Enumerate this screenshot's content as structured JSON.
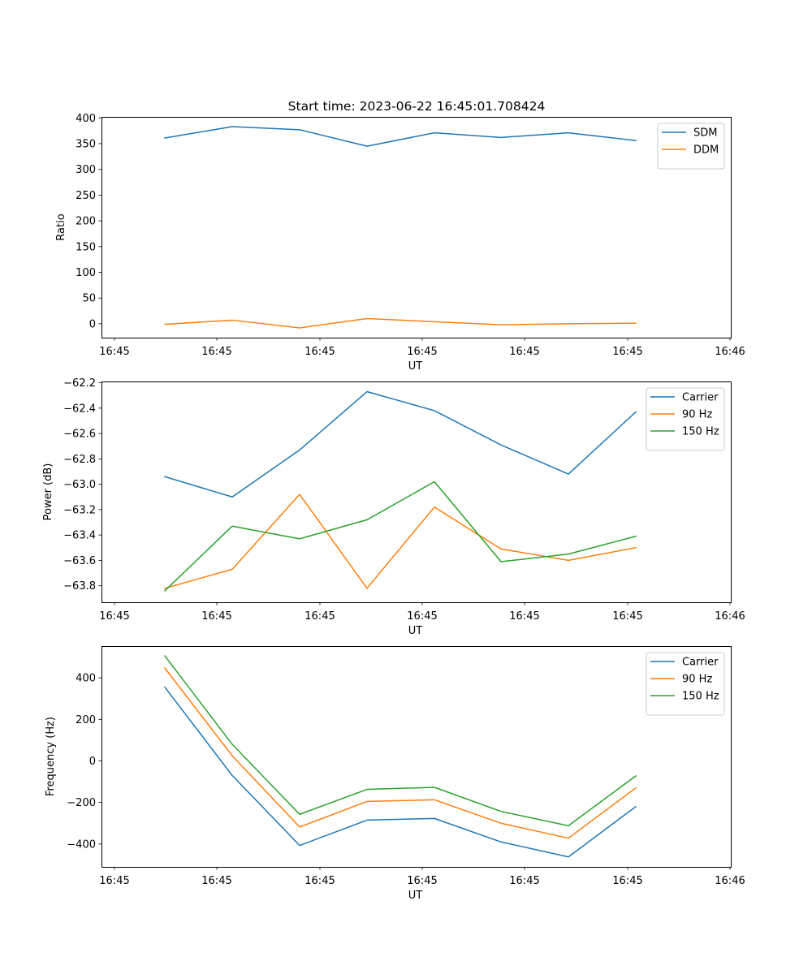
{
  "figure": {
    "title": "Start time: 2023-06-22 16:45:01.708424"
  },
  "chart_data": [
    {
      "type": "line",
      "ylabel": "Ratio",
      "xlabel": "UT",
      "ylim": [
        -27,
        402
      ],
      "yticks": [
        0,
        50,
        100,
        150,
        200,
        250,
        300,
        350,
        400
      ],
      "xtick_labels": [
        "16:45",
        "16:45",
        "16:45",
        "16:45",
        "16:45",
        "16:45",
        "16:46"
      ],
      "legend_position": "top-right",
      "series": [
        {
          "name": "SDM",
          "color": "#1f77b4",
          "values": [
            361,
            383,
            377,
            345,
            371,
            362,
            371,
            356
          ]
        },
        {
          "name": "DDM",
          "color": "#ff7f0e",
          "values": [
            -1,
            7,
            -8,
            10,
            4,
            -2,
            0,
            1
          ]
        }
      ]
    },
    {
      "type": "line",
      "ylabel": "Power (dB)",
      "xlabel": "UT",
      "ylim": [
        -63.93,
        -62.19
      ],
      "yticks": [
        -63.8,
        -63.6,
        -63.4,
        -63.2,
        -63.0,
        -62.8,
        -62.6,
        -62.4,
        -62.2
      ],
      "ytick_labels": [
        "−63.8",
        "−63.6",
        "−63.4",
        "−63.2",
        "−63.0",
        "−62.8",
        "−62.6",
        "−62.4",
        "−62.2"
      ],
      "xtick_labels": [
        "16:45",
        "16:45",
        "16:45",
        "16:45",
        "16:45",
        "16:45",
        "16:46"
      ],
      "legend_position": "top-right",
      "series": [
        {
          "name": "Carrier",
          "color": "#1f77b4",
          "values": [
            -62.94,
            -63.1,
            -62.73,
            -62.27,
            -62.42,
            -62.69,
            -62.92,
            -62.43
          ]
        },
        {
          "name": "90 Hz",
          "color": "#ff7f0e",
          "values": [
            -63.82,
            -63.67,
            -63.08,
            -63.82,
            -63.18,
            -63.51,
            -63.6,
            -63.5
          ]
        },
        {
          "name": "150 Hz",
          "color": "#2ca02c",
          "values": [
            -63.84,
            -63.33,
            -63.43,
            -63.28,
            -62.98,
            -63.61,
            -63.55,
            -63.41
          ]
        }
      ]
    },
    {
      "type": "line",
      "ylabel": "Frequency (Hz)",
      "xlabel": "UT",
      "ylim": [
        -510,
        553
      ],
      "yticks": [
        -400,
        -200,
        0,
        200,
        400
      ],
      "ytick_labels": [
        "−400",
        "−200",
        "0",
        "200",
        "400"
      ],
      "xtick_labels": [
        "16:45",
        "16:45",
        "16:45",
        "16:45",
        "16:45",
        "16:45",
        "16:46"
      ],
      "legend_position": "top-right",
      "series": [
        {
          "name": "Carrier",
          "color": "#1f77b4",
          "values": [
            355,
            -70,
            -407,
            -285,
            -277,
            -390,
            -462,
            -220
          ]
        },
        {
          "name": "90 Hz",
          "color": "#ff7f0e",
          "values": [
            447,
            25,
            -318,
            -195,
            -187,
            -300,
            -372,
            -130
          ]
        },
        {
          "name": "150 Hz",
          "color": "#2ca02c",
          "values": [
            506,
            80,
            -257,
            -137,
            -127,
            -243,
            -312,
            -72
          ]
        }
      ]
    }
  ]
}
